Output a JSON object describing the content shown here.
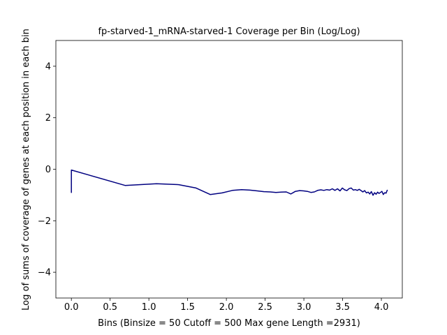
{
  "chart_data": {
    "type": "line",
    "title": "fp-starved-1_mRNA-starved-1 Coverage per Bin (Log/Log)",
    "xlabel": "Bins  (Binsize = 50 Cutoff = 500 Max gene Length =2931)",
    "ylabel": "Log of sums of coverage of genes at each position in each bin",
    "xlim": [
      -0.2,
      4.27
    ],
    "ylim": [
      -5,
      5
    ],
    "xticks": [
      0.0,
      0.5,
      1.0,
      1.5,
      2.0,
      2.5,
      3.0,
      3.5,
      4.0
    ],
    "xtick_labels": [
      "0.0",
      "0.5",
      "1.0",
      "1.5",
      "2.0",
      "2.5",
      "3.0",
      "3.5",
      "4.0"
    ],
    "yticks": [
      -4,
      -2,
      0,
      2,
      4
    ],
    "ytick_labels": [
      "−4",
      "−2",
      "0",
      "2",
      "4"
    ],
    "grid": false,
    "color": "#000080",
    "series": [
      {
        "x": [
          0.0,
          0.0,
          0.693,
          1.099,
          1.386,
          1.609,
          1.792,
          1.946,
          2.079,
          2.197,
          2.303,
          2.398,
          2.485,
          2.565,
          2.639,
          2.708,
          2.773,
          2.833,
          2.89,
          2.944,
          2.996,
          3.045,
          3.091,
          3.135,
          3.178,
          3.219,
          3.258,
          3.296,
          3.332,
          3.367,
          3.401,
          3.434,
          3.466,
          3.497,
          3.526,
          3.555,
          3.584,
          3.611,
          3.638,
          3.664,
          3.689,
          3.714,
          3.738,
          3.761,
          3.784,
          3.807,
          3.829,
          3.85,
          3.871,
          3.892,
          3.912,
          3.932,
          3.951,
          3.97,
          3.989,
          4.007,
          4.025,
          4.043,
          4.06,
          4.078
        ],
        "values": [
          -0.92,
          -0.03,
          -0.63,
          -0.56,
          -0.6,
          -0.73,
          -0.98,
          -0.92,
          -0.82,
          -0.79,
          -0.81,
          -0.84,
          -0.87,
          -0.88,
          -0.9,
          -0.89,
          -0.88,
          -0.96,
          -0.86,
          -0.83,
          -0.84,
          -0.86,
          -0.9,
          -0.88,
          -0.82,
          -0.8,
          -0.82,
          -0.79,
          -0.81,
          -0.76,
          -0.82,
          -0.76,
          -0.84,
          -0.73,
          -0.8,
          -0.83,
          -0.75,
          -0.73,
          -0.81,
          -0.79,
          -0.82,
          -0.78,
          -0.83,
          -0.88,
          -0.83,
          -0.92,
          -0.89,
          -0.96,
          -0.87,
          -1.01,
          -0.91,
          -0.97,
          -0.89,
          -0.94,
          -0.9,
          -0.86,
          -0.98,
          -0.91,
          -0.93,
          -0.8
        ]
      }
    ]
  }
}
